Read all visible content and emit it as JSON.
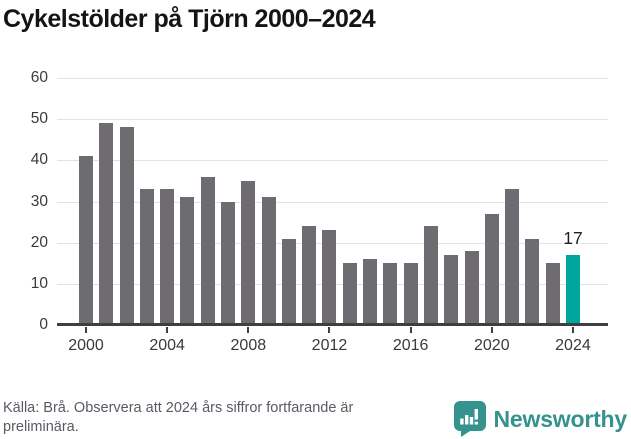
{
  "title": "Cykelstölder på Tjörn 2000–2024",
  "chart_data": {
    "type": "bar",
    "title": "Cykelstölder på Tjörn 2000–2024",
    "categories": [
      2000,
      2001,
      2002,
      2003,
      2004,
      2005,
      2006,
      2007,
      2008,
      2009,
      2010,
      2011,
      2012,
      2013,
      2014,
      2015,
      2016,
      2017,
      2018,
      2019,
      2020,
      2021,
      2022,
      2023,
      2024
    ],
    "values": [
      41,
      49,
      48,
      33,
      33,
      31,
      36,
      30,
      35,
      31,
      21,
      24,
      23,
      15,
      16,
      15,
      15,
      24,
      17,
      18,
      27,
      33,
      21,
      15,
      17
    ],
    "highlight_index": 24,
    "highlight_label": "17",
    "xlabel": "",
    "ylabel": "",
    "ylim": [
      0,
      60
    ],
    "yticks": [
      0,
      10,
      20,
      30,
      40,
      50,
      60
    ],
    "xticks": [
      2000,
      2004,
      2008,
      2012,
      2016,
      2020,
      2024
    ],
    "grid": true,
    "legend": "none",
    "colors": {
      "bar": "#6e6c71",
      "highlight": "#00a59c",
      "gridline": "#e3e3e3",
      "axis": "#3f3f42"
    }
  },
  "footer": {
    "source_lines": [
      "Källa: Brå. Observera att 2024 års siffror fortfarande är",
      "preliminära."
    ],
    "source_full": "Källa: Brå. Observera att 2024 års siffror fortfarande är preliminära.",
    "brand": "Newsworthy",
    "brand_color": "#35928e"
  }
}
